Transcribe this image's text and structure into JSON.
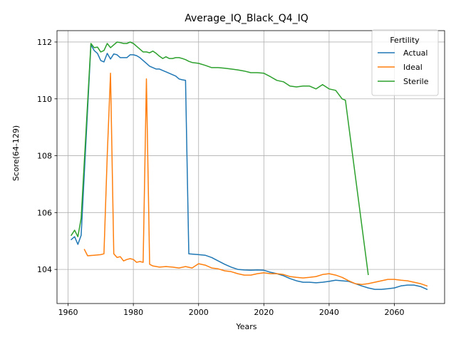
{
  "chart_data": {
    "type": "line",
    "title": "Average_IQ_Black_Q4_IQ",
    "xlabel": "Years",
    "ylabel": "Score(64-129)",
    "xlim": [
      1956.6,
      2075.4
    ],
    "ylim": [
      102.8,
      112.4
    ],
    "xticks": [
      1960,
      1980,
      2000,
      2020,
      2040,
      2060
    ],
    "yticks": [
      104,
      106,
      108,
      110,
      112
    ],
    "grid": true,
    "legend": {
      "title": "Fertility",
      "placement": "top-right"
    },
    "series": [
      {
        "name": "Actual",
        "color": "#1f77b4",
        "x": [
          1961,
          1962,
          1963,
          1964,
          1967,
          1968,
          1969,
          1970,
          1971,
          1972,
          1973,
          1974,
          1975,
          1976,
          1977,
          1978,
          1979,
          1980,
          1981,
          1982,
          1983,
          1984,
          1985,
          1986,
          1987,
          1988,
          1989,
          1990,
          1991,
          1992,
          1993,
          1994,
          1995,
          1996,
          1997,
          2000,
          2002,
          2004,
          2006,
          2008,
          2010,
          2012,
          2014,
          2016,
          2018,
          2020,
          2022,
          2024,
          2026,
          2028,
          2030,
          2032,
          2034,
          2036,
          2038,
          2040,
          2042,
          2044,
          2046,
          2048,
          2050,
          2052,
          2054,
          2056,
          2058,
          2060,
          2062,
          2064,
          2066,
          2068,
          2070
        ],
        "values": [
          105.05,
          105.15,
          104.88,
          105.2,
          111.9,
          111.7,
          111.6,
          111.35,
          111.3,
          111.6,
          111.4,
          111.58,
          111.55,
          111.45,
          111.45,
          111.45,
          111.55,
          111.55,
          111.52,
          111.45,
          111.35,
          111.25,
          111.15,
          111.1,
          111.05,
          111.05,
          111.0,
          110.95,
          110.9,
          110.85,
          110.8,
          110.7,
          110.67,
          110.65,
          104.55,
          104.52,
          104.5,
          104.42,
          104.3,
          104.18,
          104.08,
          104.0,
          103.98,
          103.97,
          103.98,
          103.97,
          103.9,
          103.85,
          103.78,
          103.68,
          103.6,
          103.55,
          103.55,
          103.53,
          103.55,
          103.58,
          103.62,
          103.6,
          103.58,
          103.5,
          103.42,
          103.35,
          103.3,
          103.3,
          103.32,
          103.35,
          103.42,
          103.45,
          103.45,
          103.4,
          103.3
        ]
      },
      {
        "name": "Ideal",
        "color": "#ff7f0e",
        "x": [
          1965,
          1966,
          1968,
          1970,
          1971,
          1972,
          1973,
          1974,
          1975,
          1976,
          1977,
          1978,
          1979,
          1980,
          1981,
          1982,
          1983,
          1984,
          1985,
          1986,
          1988,
          1990,
          1992,
          1994,
          1996,
          1998,
          2000,
          2002,
          2004,
          2006,
          2008,
          2010,
          2012,
          2014,
          2016,
          2018,
          2020,
          2022,
          2024,
          2026,
          2028,
          2030,
          2032,
          2034,
          2036,
          2038,
          2040,
          2042,
          2044,
          2046,
          2048,
          2050,
          2052,
          2054,
          2056,
          2058,
          2060,
          2062,
          2064,
          2066,
          2068,
          2070
        ],
        "values": [
          104.7,
          104.48,
          104.5,
          104.52,
          104.55,
          108.0,
          110.9,
          104.55,
          104.42,
          104.45,
          104.3,
          104.35,
          104.38,
          104.35,
          104.25,
          104.28,
          104.25,
          110.7,
          104.18,
          104.12,
          104.08,
          104.1,
          104.08,
          104.05,
          104.1,
          104.05,
          104.2,
          104.15,
          104.05,
          104.02,
          103.95,
          103.92,
          103.85,
          103.8,
          103.8,
          103.85,
          103.88,
          103.85,
          103.85,
          103.82,
          103.75,
          103.72,
          103.7,
          103.72,
          103.75,
          103.82,
          103.85,
          103.8,
          103.72,
          103.6,
          103.5,
          103.47,
          103.5,
          103.55,
          103.6,
          103.65,
          103.65,
          103.62,
          103.6,
          103.55,
          103.5,
          103.42
        ]
      },
      {
        "name": "Sterile",
        "color": "#2ca02c",
        "x": [
          1961,
          1962,
          1963,
          1964,
          1967,
          1968,
          1969,
          1970,
          1971,
          1972,
          1973,
          1974,
          1975,
          1976,
          1977,
          1978,
          1979,
          1980,
          1981,
          1982,
          1983,
          1984,
          1985,
          1986,
          1987,
          1988,
          1989,
          1990,
          1991,
          1992,
          1993,
          1994,
          1995,
          1996,
          1997,
          1998,
          2000,
          2002,
          2004,
          2006,
          2008,
          2010,
          2012,
          2014,
          2016,
          2018,
          2020,
          2022,
          2024,
          2026,
          2028,
          2030,
          2032,
          2034,
          2036,
          2038,
          2040,
          2042,
          2044,
          2045,
          2052
        ],
        "values": [
          105.2,
          105.38,
          105.15,
          105.8,
          111.95,
          111.8,
          111.82,
          111.65,
          111.7,
          111.95,
          111.8,
          111.9,
          112.0,
          111.98,
          111.95,
          111.95,
          112.0,
          111.95,
          111.85,
          111.75,
          111.65,
          111.65,
          111.62,
          111.68,
          111.6,
          111.5,
          111.42,
          111.48,
          111.42,
          111.42,
          111.45,
          111.45,
          111.42,
          111.38,
          111.32,
          111.28,
          111.25,
          111.18,
          111.1,
          111.1,
          111.08,
          111.05,
          111.02,
          110.98,
          110.92,
          110.92,
          110.9,
          110.78,
          110.65,
          110.6,
          110.45,
          110.42,
          110.45,
          110.45,
          110.35,
          110.5,
          110.35,
          110.3,
          110.0,
          109.95,
          103.82
        ]
      }
    ]
  }
}
